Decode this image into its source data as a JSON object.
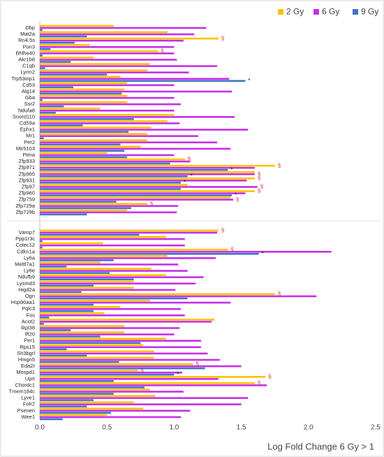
{
  "chart_data": {
    "type": "bar",
    "orientation": "horizontal",
    "xlabel": "Log Fold Change 6 Gy > 1",
    "xlim": [
      0,
      2.5
    ],
    "xticks": [
      {
        "value": 0,
        "label": "0.0"
      },
      0.5,
      {
        "value": 1,
        "label": "1.0"
      },
      1.5,
      {
        "value": 2,
        "label": "2.0"
      },
      2.5
    ],
    "grid": false,
    "legend": "top-right",
    "series": [
      {
        "name": "2 Gy",
        "color": "#FFC000"
      },
      {
        "name": "6 Gy",
        "color": "#C62FE8"
      },
      {
        "name": "9 Gy",
        "color": "#4472C4"
      }
    ],
    "panels": [
      {
        "categories": [
          "Dbp",
          "Mat2a",
          "Rn4.5s",
          "Pon3",
          "Bhlhe40",
          "Akr1b8",
          "C1qb",
          "Lyrm2",
          "Trp53inp1",
          "Cd53",
          "Alg14",
          "Gba",
          "Ssr2",
          "Ndufa8",
          "Snord110",
          "Cd59a",
          "Ephx1",
          "Mr1",
          "Per2",
          "Mir5103",
          "Ptma",
          "Zfp933",
          "Zfp971",
          "Zfp965",
          "Zfp931",
          "Zfp97",
          "Zfp960",
          "Zfp759",
          "Zfp729a",
          "Zfp729b"
        ],
        "series": [
          {
            "values": [
              0.55,
              0.95,
              1.33,
              0.37,
              0.88,
              0.4,
              0.82,
              0.8,
              0.6,
              0.65,
              0.63,
              0.65,
              0.65,
              0.45,
              1.0,
              0.95,
              0.83,
              0.8,
              0.8,
              0.75,
              0.5,
              1.08,
              1.75,
              1.6,
              1.6,
              1.1,
              1.6,
              1.42,
              0.8,
              0.65
            ]
          },
          {
            "values": [
              1.24,
              1.15,
              1.07,
              1.0,
              1.0,
              1.02,
              1.32,
              1.11,
              1.41,
              1.0,
              1.43,
              1.0,
              1.05,
              1.0,
              1.45,
              1.04,
              1.55,
              1.18,
              1.32,
              1.42,
              1.0,
              1.12,
              1.6,
              1.6,
              1.54,
              1.62,
              1.53,
              1.44,
              1.03,
              1.02
            ]
          },
          {
            "values": [
              0.02,
              0.35,
              0.26,
              0.08,
              0.02,
              0.23,
              0.04,
              0.5,
              1.53,
              0.25,
              0.61,
              0.02,
              0.18,
              0.12,
              0.7,
              0.32,
              0.66,
              0.03,
              0.6,
              0.63,
              0.65,
              0.97,
              1.4,
              1.1,
              1.05,
              1.05,
              1.43,
              0.57,
              0.68,
              0.35
            ]
          }
        ],
        "annotations": [
          {
            "category": "Rn4.5s",
            "series": "2 Gy",
            "text": "§"
          },
          {
            "category": "Bhlhe40",
            "series": "2 Gy",
            "text": "§"
          },
          {
            "category": "Trp53inp1",
            "series": "9 Gy",
            "text": "*"
          },
          {
            "category": "Zfp933",
            "series": "2 Gy",
            "text": "§"
          },
          {
            "category": "Zfp971",
            "series": "2 Gy",
            "text": "§"
          },
          {
            "category": "Zfp971",
            "series": "9 Gy",
            "text": "*"
          },
          {
            "category": "Zfp965",
            "series": "6 Gy",
            "text": "§"
          },
          {
            "category": "Zfp965",
            "series": "9 Gy",
            "text": "*"
          },
          {
            "category": "Zfp931",
            "series": "2 Gy",
            "text": "§"
          },
          {
            "category": "Zfp931",
            "series": "9 Gy",
            "text": "*"
          },
          {
            "category": "Zfp97",
            "series": "6 Gy",
            "text": "§"
          },
          {
            "category": "Zfp960",
            "series": "2 Gy",
            "text": "§"
          },
          {
            "category": "Zfp960",
            "series": "9 Gy",
            "text": "*"
          },
          {
            "category": "Zfp759",
            "series": "6 Gy",
            "text": "§"
          },
          {
            "category": "Zfp729a",
            "series": "2 Gy",
            "text": "§"
          }
        ]
      },
      {
        "categories": [
          "Vamp7",
          "Ppp1r3c",
          "Colec12",
          "Cdkn1a",
          "Ly6a",
          "Mettl7a1",
          "Ly6e",
          "Ndufb9",
          "Lysmd3",
          "Higd2a",
          "Ogn",
          "Hsp90aa1",
          "Pqlc3",
          "Fos",
          "Acot2",
          "Rpl38",
          "Ift20",
          "Per1",
          "Rps15",
          "Sh3bgrl",
          "Hmgn5",
          "Eda2r",
          "Mospd1",
          "Uprt",
          "Chordc1",
          "Tmem184c",
          "Lyve1",
          "Folr2",
          "Psenen",
          "Wee1"
        ],
        "series": [
          {
            "values": [
              1.33,
              0.94,
              0.47,
              1.4,
              0.95,
              0.45,
              0.83,
              0.94,
              0.7,
              0.7,
              1.75,
              0.82,
              0.6,
              0.48,
              1.3,
              0.63,
              0.63,
              0.94,
              0.77,
              0.85,
              0.85,
              1.14,
              0.73,
              1.68,
              1.6,
              0.82,
              0.86,
              0.7,
              0.77,
              0.5
            ]
          },
          {
            "values": [
              1.32,
              1.08,
              1.08,
              2.17,
              1.31,
              1.03,
              1.1,
              1.22,
              1.16,
              1.01,
              2.06,
              1.42,
              1.05,
              1.08,
              1.28,
              1.04,
              1.0,
              1.2,
              1.2,
              1.25,
              1.34,
              1.5,
              1.06,
              1.33,
              1.69,
              1.07,
              1.55,
              1.5,
              1.12,
              1.05
            ]
          },
          {
            "values": [
              0.74,
              0.02,
              0.02,
              1.63,
              0.55,
              0.2,
              0.52,
              0.7,
              0.4,
              0.31,
              1.1,
              0.4,
              0.4,
              0.07,
              0.03,
              0.23,
              0.45,
              0.75,
              0.2,
              0.35,
              0.59,
              1.23,
              1.0,
              0.55,
              0.78,
              0.55,
              0.4,
              0.35,
              0.53,
              0.17
            ]
          }
        ],
        "annotations": [
          {
            "category": "Vamp7",
            "series": "2 Gy",
            "text": "§"
          },
          {
            "category": "Cdkn1a",
            "series": "2 Gy",
            "text": "§"
          },
          {
            "category": "Cdkn1a",
            "series": "9 Gy",
            "text": "*"
          },
          {
            "category": "Ogn",
            "series": "2 Gy",
            "text": "§"
          },
          {
            "category": "Eda2r",
            "series": "2 Gy",
            "text": "§"
          },
          {
            "category": "Mospd1",
            "series": "9 Gy",
            "text": "*"
          },
          {
            "category": "Mospd1",
            "series": "2 Gy",
            "text": "§"
          },
          {
            "category": "Uprt",
            "series": "2 Gy",
            "text": "§"
          },
          {
            "category": "Chordc1",
            "series": "2 Gy",
            "text": "§"
          }
        ]
      }
    ]
  }
}
